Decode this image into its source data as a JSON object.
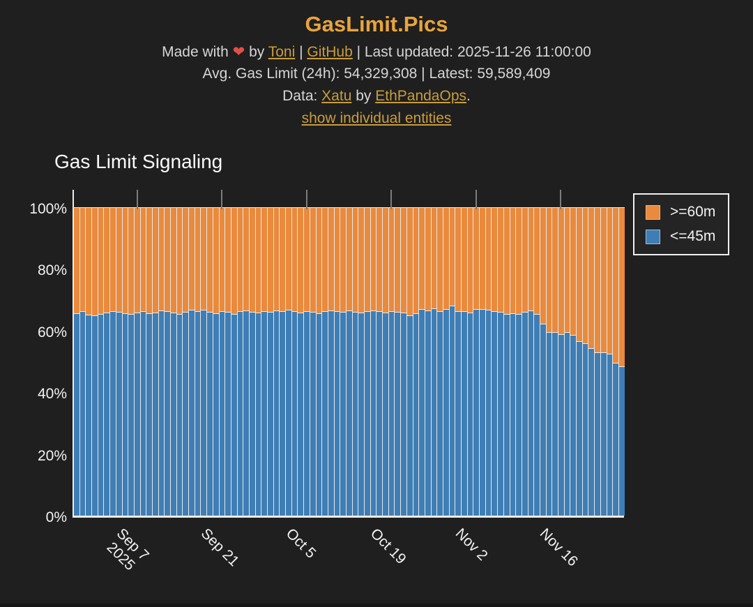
{
  "page": {
    "background": "#1f1f1f"
  },
  "header": {
    "title": "GasLimit.Pics",
    "line1": {
      "prefix": "Made with ",
      "heart": "❤",
      "mid": " by ",
      "link_toni": "Toni",
      "sep": " | ",
      "link_github": "GitHub",
      "suffix": " | Last updated: 2025-11-26 11:00:00"
    },
    "line2": "Avg. Gas Limit (24h): 54,329,308 | Latest: 59,589,409",
    "line3": {
      "prefix": "Data: ",
      "link_xatu": "Xatu",
      "mid": " by ",
      "link_ethpandaops": "EthPandaOps",
      "suffix": "."
    },
    "line4_link": "show individual entities"
  },
  "chart": {
    "title": "Gas Limit Signaling",
    "y_ticks": [
      "100%",
      "80%",
      "60%",
      "40%",
      "20%",
      "0%"
    ],
    "x_ticks": [
      {
        "label": "Sep 7",
        "sub": "2025",
        "index": 10
      },
      {
        "label": "Sep 21",
        "sub": "",
        "index": 24
      },
      {
        "label": "Oct 5",
        "sub": "",
        "index": 38
      },
      {
        "label": "Oct 19",
        "sub": "",
        "index": 52
      },
      {
        "label": "Nov 2",
        "sub": "",
        "index": 66
      },
      {
        "label": "Nov 16",
        "sub": "",
        "index": 80
      }
    ],
    "legend": [
      {
        "label": ">=60m",
        "color": "#e98a3d"
      },
      {
        "label": "<=45m",
        "color": "#3f7eb5"
      }
    ]
  },
  "chart_data": {
    "type": "bar",
    "stacked": true,
    "normalized_percent": true,
    "title": "Gas Limit Signaling",
    "ylabel": "",
    "xlabel": "",
    "ylim": [
      0,
      106
    ],
    "grid": "x-ticks only, visible above 100% line",
    "legend_position": "outside top-right",
    "x_unit": "day",
    "x": [
      "Aug 28",
      "Aug 29",
      "Aug 30",
      "Aug 31",
      "Sep 1",
      "Sep 2",
      "Sep 3",
      "Sep 4",
      "Sep 5",
      "Sep 6",
      "Sep 7",
      "Sep 8",
      "Sep 9",
      "Sep 10",
      "Sep 11",
      "Sep 12",
      "Sep 13",
      "Sep 14",
      "Sep 15",
      "Sep 16",
      "Sep 17",
      "Sep 18",
      "Sep 19",
      "Sep 20",
      "Sep 21",
      "Sep 22",
      "Sep 23",
      "Sep 24",
      "Sep 25",
      "Sep 26",
      "Sep 27",
      "Sep 28",
      "Sep 29",
      "Sep 30",
      "Oct 1",
      "Oct 2",
      "Oct 3",
      "Oct 4",
      "Oct 5",
      "Oct 6",
      "Oct 7",
      "Oct 8",
      "Oct 9",
      "Oct 10",
      "Oct 11",
      "Oct 12",
      "Oct 13",
      "Oct 14",
      "Oct 15",
      "Oct 16",
      "Oct 17",
      "Oct 18",
      "Oct 19",
      "Oct 20",
      "Oct 21",
      "Oct 22",
      "Oct 23",
      "Oct 24",
      "Oct 25",
      "Oct 26",
      "Oct 27",
      "Oct 28",
      "Oct 29",
      "Oct 30",
      "Oct 31",
      "Nov 1",
      "Nov 2",
      "Nov 3",
      "Nov 4",
      "Nov 5",
      "Nov 6",
      "Nov 7",
      "Nov 8",
      "Nov 9",
      "Nov 10",
      "Nov 11",
      "Nov 12",
      "Nov 13",
      "Nov 14",
      "Nov 15",
      "Nov 16",
      "Nov 17",
      "Nov 18",
      "Nov 19",
      "Nov 20",
      "Nov 21",
      "Nov 22",
      "Nov 23",
      "Nov 24",
      "Nov 25",
      "Nov 26"
    ],
    "series": [
      {
        "name": ">=60m",
        "color": "#e98a3d",
        "values": [
          34.4,
          33.8,
          34.9,
          35.1,
          34.6,
          34.1,
          33.6,
          33.9,
          34.5,
          34.6,
          34.1,
          33.8,
          34.5,
          34.1,
          33.4,
          33.8,
          34.2,
          34.7,
          34.0,
          33.3,
          33.7,
          33.2,
          33.9,
          34.4,
          33.6,
          34.0,
          34.6,
          33.8,
          33.4,
          33.9,
          34.2,
          33.7,
          34.0,
          33.5,
          33.8,
          33.3,
          33.7,
          34.1,
          33.6,
          33.9,
          34.3,
          33.8,
          33.4,
          33.7,
          34.0,
          33.5,
          33.9,
          34.2,
          33.7,
          33.4,
          33.8,
          34.1,
          33.7,
          33.9,
          34.2,
          35.1,
          34.5,
          33.0,
          33.4,
          32.8,
          33.6,
          33.0,
          31.9,
          33.6,
          33.7,
          34.2,
          33.0,
          33.0,
          33.2,
          33.6,
          34.0,
          34.7,
          34.5,
          34.6,
          34.0,
          33.5,
          34.6,
          37.8,
          40.6,
          40.6,
          41.1,
          40.4,
          41.5,
          43.4,
          44.1,
          45.6,
          47.1,
          47.1,
          47.5,
          50.4,
          51.6
        ]
      },
      {
        "name": "<=45m",
        "color": "#3f7eb5",
        "values": [
          65.6,
          66.2,
          65.1,
          64.9,
          65.4,
          65.9,
          66.4,
          66.1,
          65.5,
          65.4,
          65.9,
          66.2,
          65.5,
          65.9,
          66.6,
          66.2,
          65.8,
          65.3,
          66.0,
          66.7,
          66.3,
          66.8,
          66.1,
          65.6,
          66.4,
          66.0,
          65.4,
          66.2,
          66.6,
          66.1,
          65.8,
          66.3,
          66.0,
          66.5,
          66.2,
          66.7,
          66.3,
          65.9,
          66.4,
          66.1,
          65.7,
          66.2,
          66.6,
          66.3,
          66.0,
          66.5,
          66.1,
          65.8,
          66.3,
          66.6,
          66.2,
          65.9,
          66.3,
          66.1,
          65.8,
          64.9,
          65.5,
          67.0,
          66.6,
          67.2,
          66.4,
          67.0,
          68.1,
          66.4,
          66.3,
          65.8,
          67.0,
          67.0,
          66.8,
          66.4,
          66.0,
          65.3,
          65.5,
          65.4,
          66.0,
          66.5,
          65.4,
          62.2,
          59.4,
          59.4,
          58.9,
          59.6,
          58.5,
          56.6,
          55.9,
          54.4,
          52.9,
          52.9,
          52.5,
          49.6,
          48.4
        ]
      }
    ]
  }
}
